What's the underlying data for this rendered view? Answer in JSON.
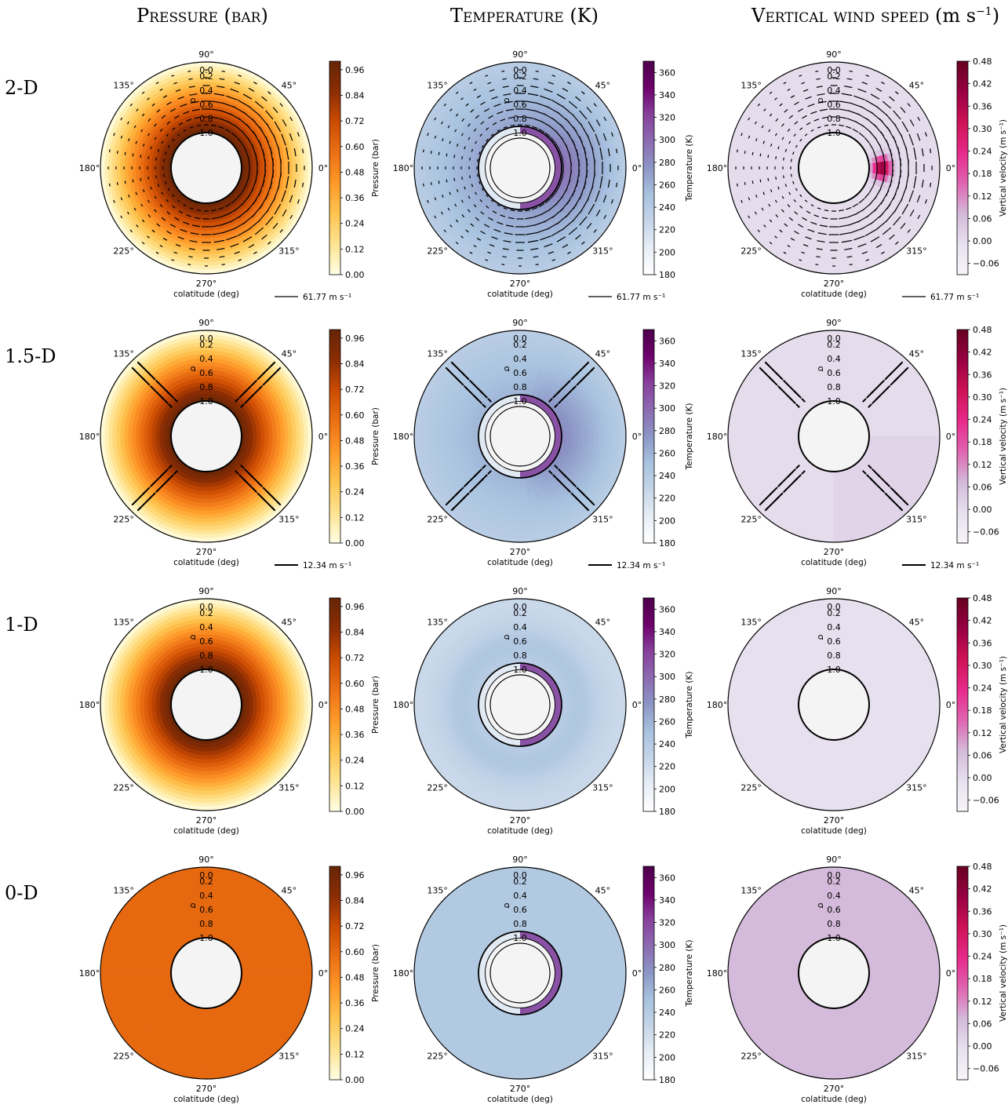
{
  "column_titles": [
    {
      "main": "Pressure",
      "unit": "(bar)"
    },
    {
      "main": "Vertical wind speed",
      "unit": "(m s",
      "sup": "−1",
      "close": ")"
    },
    {
      "main": "Temperature",
      "unit": "(K)"
    }
  ],
  "row_labels": [
    "2-D",
    "1.5-D",
    "1-D",
    "0-D"
  ],
  "polar_axis": {
    "angle_labels": [
      "0°",
      "45°",
      "90°",
      "135°",
      "180°",
      "225°",
      "270°",
      "315°"
    ],
    "radial_labels": [
      "0.0",
      "0.2",
      "0.4",
      "0.6",
      "0.8",
      "1.0"
    ],
    "radial_axis_label": "σ",
    "xlabel": "colatitude (deg)"
  },
  "colorbars": {
    "pressure": {
      "label": "Pressure (bar)",
      "ticks": [
        "0.00",
        "0.12",
        "0.24",
        "0.36",
        "0.48",
        "0.60",
        "0.72",
        "0.84",
        "0.96"
      ],
      "range": [
        0,
        1.0
      ],
      "colors": [
        "#ffffe5",
        "#fee391",
        "#fec44f",
        "#fe9929",
        "#ec7014",
        "#cc4c02",
        "#8c2d04",
        "#662506"
      ]
    },
    "temperature": {
      "label": "Temperature (K)",
      "ticks": [
        "180",
        "200",
        "220",
        "240",
        "260",
        "280",
        "300",
        "320",
        "340",
        "360"
      ],
      "range": [
        180,
        370
      ],
      "colors": [
        "#ffffff",
        "#e8eef6",
        "#c5d5e8",
        "#a8c2df",
        "#8c96c6",
        "#8c6bb1",
        "#88419d",
        "#6e016b",
        "#4d004b"
      ]
    },
    "wind": {
      "label": "Vertical velocity (m s⁻¹)",
      "ticks": [
        "−0.06",
        "0.00",
        "0.06",
        "0.12",
        "0.18",
        "0.24",
        "0.30",
        "0.36",
        "0.42",
        "0.48"
      ],
      "range": [
        -0.09,
        0.48
      ],
      "colors": [
        "#f7f4f9",
        "#e7e1ef",
        "#d4b9da",
        "#df65b0",
        "#e7298a",
        "#ce1256",
        "#980043",
        "#67001f"
      ]
    }
  },
  "vector_keys": [
    "61.77 m s⁻¹",
    "12.34 m s⁻¹"
  ],
  "chart_data": [
    {
      "type": "heatmap",
      "row": "2-D",
      "column": "pressure",
      "mode": "2d"
    },
    {
      "type": "heatmap",
      "row": "2-D",
      "column": "temperature",
      "mode": "2d"
    },
    {
      "type": "heatmap",
      "row": "2-D",
      "column": "wind",
      "mode": "2d"
    },
    {
      "type": "heatmap",
      "row": "1.5-D",
      "column": "pressure",
      "mode": "15d"
    },
    {
      "type": "heatmap",
      "row": "1.5-D",
      "column": "temperature",
      "mode": "15d"
    },
    {
      "type": "heatmap",
      "row": "1.5-D",
      "column": "wind",
      "mode": "15d"
    },
    {
      "type": "heatmap",
      "row": "1-D",
      "column": "pressure",
      "mode": "1d"
    },
    {
      "type": "heatmap",
      "row": "1-D",
      "column": "temperature",
      "mode": "1d"
    },
    {
      "type": "heatmap",
      "row": "1-D",
      "column": "wind",
      "mode": "1d"
    },
    {
      "type": "heatmap",
      "row": "0-D",
      "column": "pressure",
      "mode": "0d"
    },
    {
      "type": "heatmap",
      "row": "0-D",
      "column": "temperature",
      "mode": "0d"
    },
    {
      "type": "heatmap",
      "row": "0-D",
      "column": "wind",
      "mode": "0d"
    }
  ]
}
